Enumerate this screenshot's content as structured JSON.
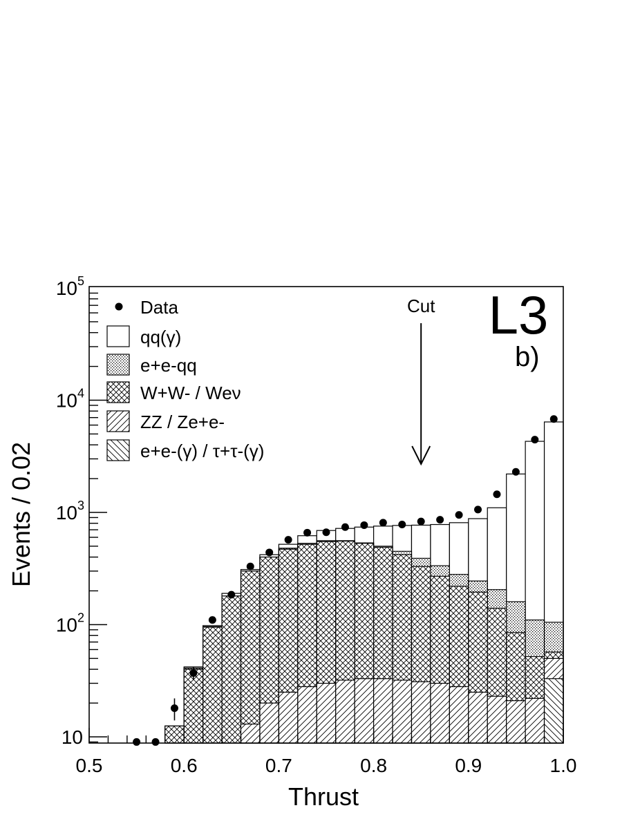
{
  "chart_data": {
    "type": "histogram",
    "xlabel": "Thrust",
    "ylabel": "Events / 0.02",
    "xlim": [
      0.5,
      1.0
    ],
    "ylim": [
      9,
      100000
    ],
    "yscale": "log",
    "x_ticks": [
      "0.5",
      "0.6",
      "0.7",
      "0.8",
      "0.9",
      "1.0"
    ],
    "y_ticks": [
      {
        "base": "10",
        "exp": "5",
        "value": 100000
      },
      {
        "base": "10",
        "exp": "4",
        "value": 10000
      },
      {
        "base": "10",
        "exp": "3",
        "value": 1000
      },
      {
        "base": "10",
        "exp": "2",
        "value": 100
      },
      {
        "base": "10",
        "exp": "",
        "value": 10
      }
    ],
    "bin_edges": [
      0.58,
      0.6,
      0.62,
      0.64,
      0.66,
      0.68,
      0.7,
      0.72,
      0.74,
      0.76,
      0.78,
      0.8,
      0.82,
      0.84,
      0.86,
      0.88,
      0.9,
      0.92,
      0.94,
      0.96,
      0.98,
      1.0
    ],
    "series": [
      {
        "name": "qq(γ)",
        "role": "total",
        "values": [
          12.5,
          42,
          98,
          190,
          310,
          420,
          520,
          620,
          690,
          720,
          740,
          755,
          765,
          770,
          780,
          810,
          880,
          1100,
          2200,
          4300,
          6400
        ]
      },
      {
        "name": "e+e-qq",
        "role": "stack",
        "values": [
          12.5,
          41,
          96,
          180,
          300,
          400,
          480,
          530,
          560,
          560,
          535,
          500,
          450,
          390,
          335,
          280,
          245,
          205,
          160,
          110,
          105
        ]
      },
      {
        "name": "W+W- / Weν",
        "role": "stack",
        "values": [
          12.5,
          40,
          95,
          180,
          300,
          400,
          470,
          520,
          550,
          555,
          530,
          490,
          420,
          330,
          270,
          220,
          195,
          140,
          85,
          52,
          57
        ]
      },
      {
        "name": "ZZ / Ze+e-",
        "role": "stack",
        "values": [
          0,
          0,
          0,
          0,
          13,
          20,
          25,
          28,
          30,
          32,
          33,
          33,
          32,
          31,
          30,
          28,
          25,
          23,
          21,
          22,
          50
        ]
      },
      {
        "name": "e+e-(γ) / τ+τ-(γ)",
        "role": "stack",
        "values": [
          0,
          0,
          0,
          0,
          0,
          0,
          0,
          0,
          0,
          0,
          0,
          0,
          0,
          0,
          0,
          0,
          0,
          0,
          0,
          0,
          33
        ]
      }
    ],
    "data_points": [
      {
        "x": 0.55,
        "y": 9
      },
      {
        "x": 0.57,
        "y": 9
      },
      {
        "x": 0.59,
        "y": 18,
        "err_low": 14,
        "err_high": 22
      },
      {
        "x": 0.61,
        "y": 37,
        "err_low": 32,
        "err_high": 42
      },
      {
        "x": 0.63,
        "y": 110
      },
      {
        "x": 0.65,
        "y": 185
      },
      {
        "x": 0.67,
        "y": 330
      },
      {
        "x": 0.69,
        "y": 440
      },
      {
        "x": 0.71,
        "y": 570
      },
      {
        "x": 0.73,
        "y": 660
      },
      {
        "x": 0.75,
        "y": 665
      },
      {
        "x": 0.77,
        "y": 740
      },
      {
        "x": 0.79,
        "y": 770
      },
      {
        "x": 0.81,
        "y": 810
      },
      {
        "x": 0.83,
        "y": 780
      },
      {
        "x": 0.85,
        "y": 830
      },
      {
        "x": 0.87,
        "y": 860
      },
      {
        "x": 0.89,
        "y": 950
      },
      {
        "x": 0.91,
        "y": 1060
      },
      {
        "x": 0.93,
        "y": 1450
      },
      {
        "x": 0.95,
        "y": 2300
      },
      {
        "x": 0.97,
        "y": 4450
      },
      {
        "x": 0.99,
        "y": 6800
      }
    ],
    "cut": {
      "label": "Cut",
      "x": 0.85
    },
    "legend": [
      {
        "style": "dot",
        "label": "Data"
      },
      {
        "style": "empty",
        "label": "qq(γ)"
      },
      {
        "style": "dots",
        "label": "e+e-qq"
      },
      {
        "style": "cross",
        "label": "W+W- / Weν"
      },
      {
        "style": "diag",
        "label": "ZZ / Ze+e-"
      },
      {
        "style": "antidiag",
        "label": "e+e-(γ) / τ+τ-(γ)"
      }
    ],
    "experiment_label": "L3",
    "panel_label": "b)"
  }
}
